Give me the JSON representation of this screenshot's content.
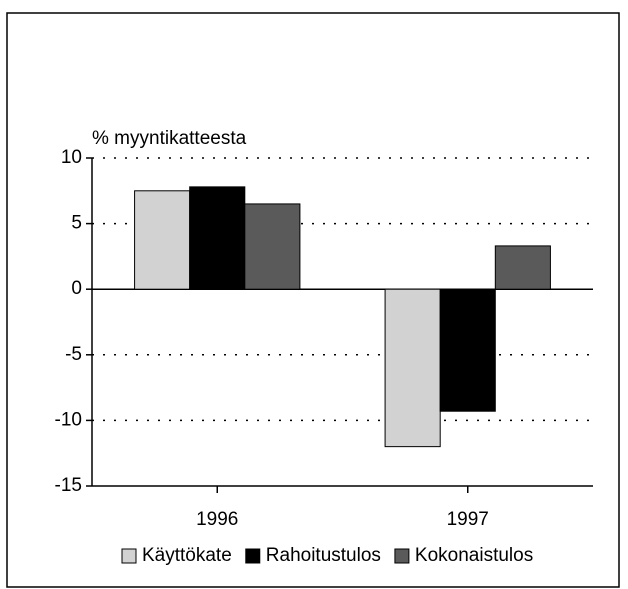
{
  "chart_data": {
    "type": "bar",
    "y_axis_label": "% myyntikatteesta",
    "categories": [
      "1996",
      "1997"
    ],
    "series": [
      {
        "name": "Käyttökate",
        "color": "#d2d2d2",
        "values": [
          7.5,
          -12
        ]
      },
      {
        "name": "Rahoitustulos",
        "color": "#000000",
        "values": [
          7.8,
          -9.3
        ]
      },
      {
        "name": "Kokonaistulos",
        "color": "#5a5a5a",
        "values": [
          6.5,
          3.3
        ]
      }
    ],
    "ylim": [
      -15,
      10
    ],
    "yticks": [
      -15,
      -10,
      -5,
      0,
      5,
      10
    ],
    "grid": true,
    "legend": "bottom"
  }
}
